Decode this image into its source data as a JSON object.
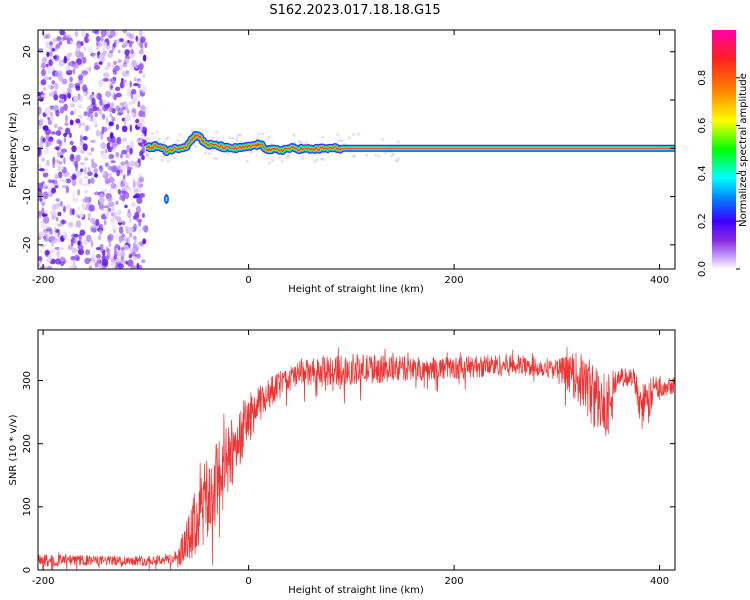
{
  "title": "S162.2023.017.18.18.G15",
  "chart_data": [
    {
      "type": "heatmap",
      "title": "S162.2023.017.18.18.G15",
      "xlabel": "Height of straight line (km)",
      "ylabel": "Frequency (Hz)",
      "xlim": [
        -205,
        415
      ],
      "ylim": [
        -25,
        24.5
      ],
      "xticks": [
        -200,
        0,
        200,
        400
      ],
      "yticks": [
        -20,
        -10,
        0,
        10,
        20
      ],
      "colorbar": {
        "label": "Normalized spectral amplitude",
        "range": [
          0,
          1
        ],
        "ticks": [
          0.0,
          0.2,
          0.4,
          0.6,
          0.8
        ],
        "colormap": [
          "#ffffff",
          "#c8a0ff",
          "#8a2be2",
          "#4b00ff",
          "#0000ff",
          "#00ffff",
          "#00ff00",
          "#ffff00",
          "#ff8000",
          "#ff0000",
          "#ff00ff"
        ]
      },
      "noise_region": {
        "x_from": -205,
        "x_to": -100,
        "y_from": -25,
        "y_to": 24.5
      },
      "ridge": {
        "x": [
          -100,
          -90,
          -80,
          -70,
          -60,
          -55,
          -50,
          -45,
          -40,
          -30,
          -20,
          -10,
          0,
          10,
          20,
          30,
          40,
          60,
          80,
          100,
          150,
          200,
          250,
          300,
          350,
          415
        ],
        "y": [
          0,
          0.5,
          -0.5,
          0,
          0.5,
          2,
          3,
          1.5,
          0.8,
          0.5,
          0,
          0,
          0.3,
          0.8,
          -0.3,
          -0.4,
          0,
          -0.2,
          0,
          0,
          0,
          0,
          0,
          0,
          0,
          0
        ]
      },
      "blob": {
        "x": -80,
        "y": -10.5
      }
    },
    {
      "type": "line",
      "xlabel": "Height of straight line (km)",
      "ylabel": "SNR (10 * v/v)",
      "xlim": [
        -205,
        415
      ],
      "ylim": [
        0,
        380
      ],
      "xticks": [
        -200,
        0,
        200,
        400
      ],
      "yticks": [
        0,
        100,
        200,
        300
      ],
      "series_color": "#ee3333",
      "envelope": {
        "x": [
          -205,
          -150,
          -100,
          -70,
          -60,
          -50,
          -40,
          -30,
          -20,
          -10,
          0,
          10,
          20,
          30,
          50,
          80,
          100,
          150,
          200,
          250,
          300,
          320,
          330,
          345,
          360,
          375,
          385,
          395,
          415
        ],
        "mean": [
          15,
          15,
          15,
          18,
          40,
          80,
          110,
          140,
          170,
          210,
          240,
          260,
          280,
          295,
          310,
          315,
          318,
          318,
          320,
          325,
          320,
          305,
          290,
          255,
          305,
          305,
          245,
          290,
          295
        ],
        "spread": [
          10,
          8,
          8,
          10,
          40,
          60,
          70,
          70,
          60,
          50,
          40,
          30,
          25,
          20,
          22,
          25,
          25,
          20,
          18,
          18,
          15,
          40,
          50,
          60,
          15,
          15,
          50,
          20,
          15
        ]
      }
    }
  ]
}
